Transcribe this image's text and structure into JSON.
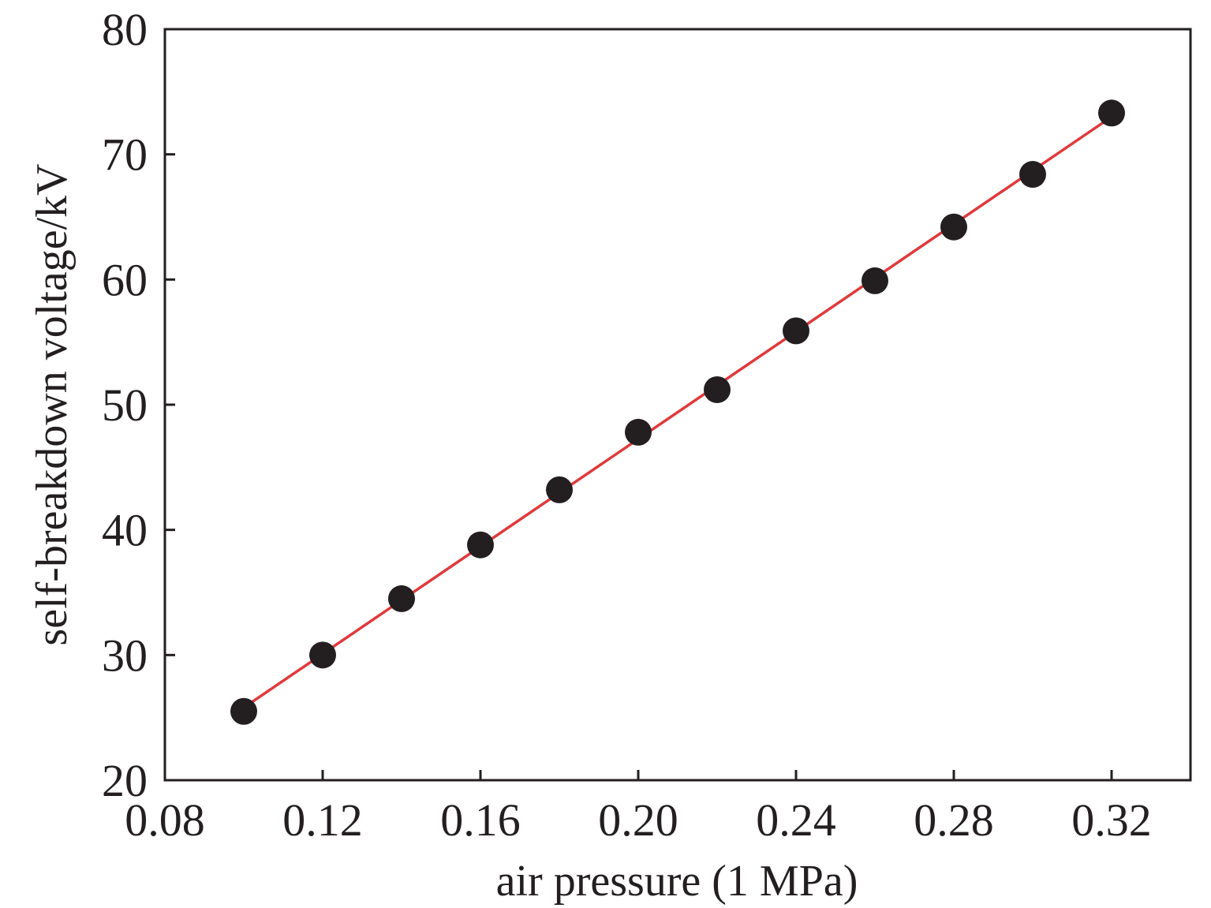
{
  "chart_data": {
    "type": "scatter",
    "xlabel": "air pressure (1 MPa)",
    "ylabel": "self-breakdown voltage/kV",
    "xlim": [
      0.08,
      0.34
    ],
    "ylim": [
      20,
      80
    ],
    "x_ticks": [
      0.08,
      0.12,
      0.16,
      0.2,
      0.24,
      0.28,
      0.32
    ],
    "x_tick_labels": [
      "0.08",
      "0.12",
      "0.16",
      "0.20",
      "0.24",
      "0.28",
      "0.32"
    ],
    "y_ticks": [
      20,
      30,
      40,
      50,
      60,
      70,
      80
    ],
    "y_tick_labels": [
      "20",
      "30",
      "40",
      "50",
      "60",
      "70",
      "80"
    ],
    "grid": false,
    "series": [
      {
        "kind": "scatter",
        "x": [
          0.1,
          0.12,
          0.14,
          0.16,
          0.18,
          0.2,
          0.22,
          0.24,
          0.26,
          0.28,
          0.3,
          0.32
        ],
        "y": [
          25.5,
          30.0,
          34.5,
          38.8,
          43.2,
          47.8,
          51.2,
          55.9,
          59.9,
          64.2,
          68.4,
          73.3
        ],
        "color": "#231f20"
      },
      {
        "kind": "fit-line",
        "x": [
          0.1,
          0.32
        ],
        "y": [
          25.8,
          73.0
        ],
        "color": "#e0393b"
      }
    ]
  }
}
